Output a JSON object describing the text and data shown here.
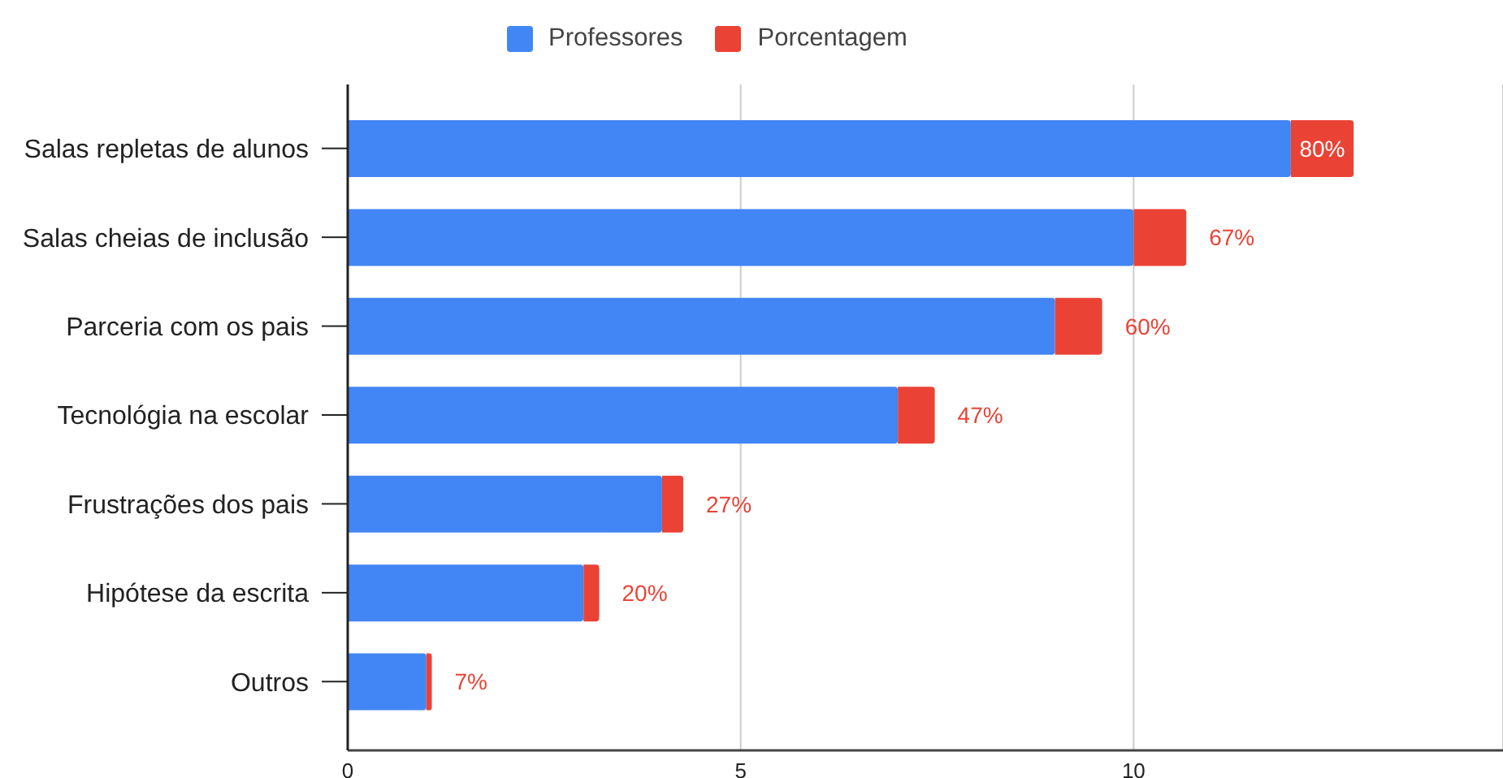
{
  "chart_data": {
    "type": "bar",
    "orientation": "horizontal",
    "stacked": true,
    "categories": [
      "Salas repletas de alunos",
      "Salas cheias de inclusão",
      "Parceria com os pais",
      "Tecnológia na escolar",
      "Frustrações dos pais",
      "Hipótese da escrita",
      "Outros"
    ],
    "series": [
      {
        "name": "Professores",
        "color": "#4285f4",
        "values": [
          12,
          10,
          9,
          7,
          4,
          3,
          1
        ]
      },
      {
        "name": "Porcentagem",
        "color": "#ea4335",
        "values": [
          0.8,
          0.67,
          0.6,
          0.47,
          0.27,
          0.2,
          0.07
        ],
        "value_labels": [
          "80%",
          "67%",
          "60%",
          "47%",
          "27%",
          "20%",
          "7%"
        ]
      }
    ],
    "xlim": [
      0,
      14.7
    ],
    "xticks": [
      0,
      5,
      10
    ],
    "grid": "x",
    "legend": "top"
  }
}
